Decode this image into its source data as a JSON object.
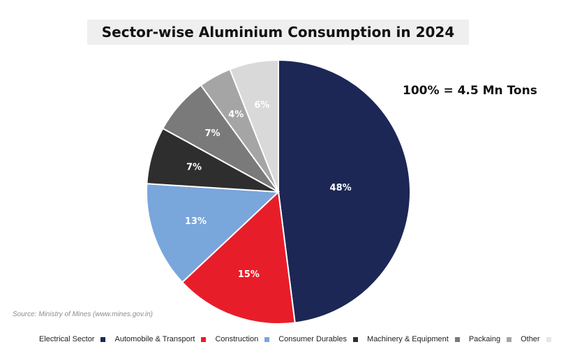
{
  "title": "Sector-wise Aluminium Consumption in 2024",
  "note": "100% = 4.5 Mn Tons",
  "source": "Source: Ministry of Mines (www.mines.gov.in)",
  "chart_data": {
    "type": "pie",
    "title": "Sector-wise Aluminium Consumption in 2024",
    "start_angle_deg": 0,
    "direction": "clockwise",
    "legend_position": "bottom",
    "slices": [
      {
        "label": "Electrical Sector",
        "value": 48,
        "value_label": "48%",
        "color": "#1c2756",
        "text_color": "#ffffff"
      },
      {
        "label": "Automobile & Transport",
        "value": 15,
        "value_label": "15%",
        "color": "#e81d2a",
        "text_color": "#ffffff"
      },
      {
        "label": "Construction",
        "value": 13,
        "value_label": "13%",
        "color": "#79a6db",
        "text_color": "#ffffff"
      },
      {
        "label": "Consumer Durables",
        "value": 7,
        "value_label": "7%",
        "color": "#2e2e2e",
        "text_color": "#ffffff"
      },
      {
        "label": "Machinery & Equipment",
        "value": 7,
        "value_label": "7%",
        "color": "#7a7a7a",
        "text_color": "#ffffff"
      },
      {
        "label": "Packaing",
        "value": 4,
        "value_label": "4%",
        "color": "#a5a5a5",
        "text_color": "#ffffff"
      },
      {
        "label": "Other",
        "value": 6,
        "value_label": "6%",
        "color": "#d9d9d9",
        "text_color": "#ffffff"
      }
    ],
    "legend": [
      {
        "label": "Electrical Sector",
        "color": "#1c2756"
      },
      {
        "label": "Automobile & Transport",
        "color": "#e81d2a"
      },
      {
        "label": "Construction",
        "color": "#79a6db"
      },
      {
        "label": "Consumer Durables",
        "color": "#2e2e2e"
      },
      {
        "label": "Machinery & Equipment",
        "color": "#7a7a7a"
      },
      {
        "label": "Packaing",
        "color": "#a5a5a5"
      },
      {
        "label": "Other",
        "color": "#e6e6e6"
      }
    ]
  }
}
